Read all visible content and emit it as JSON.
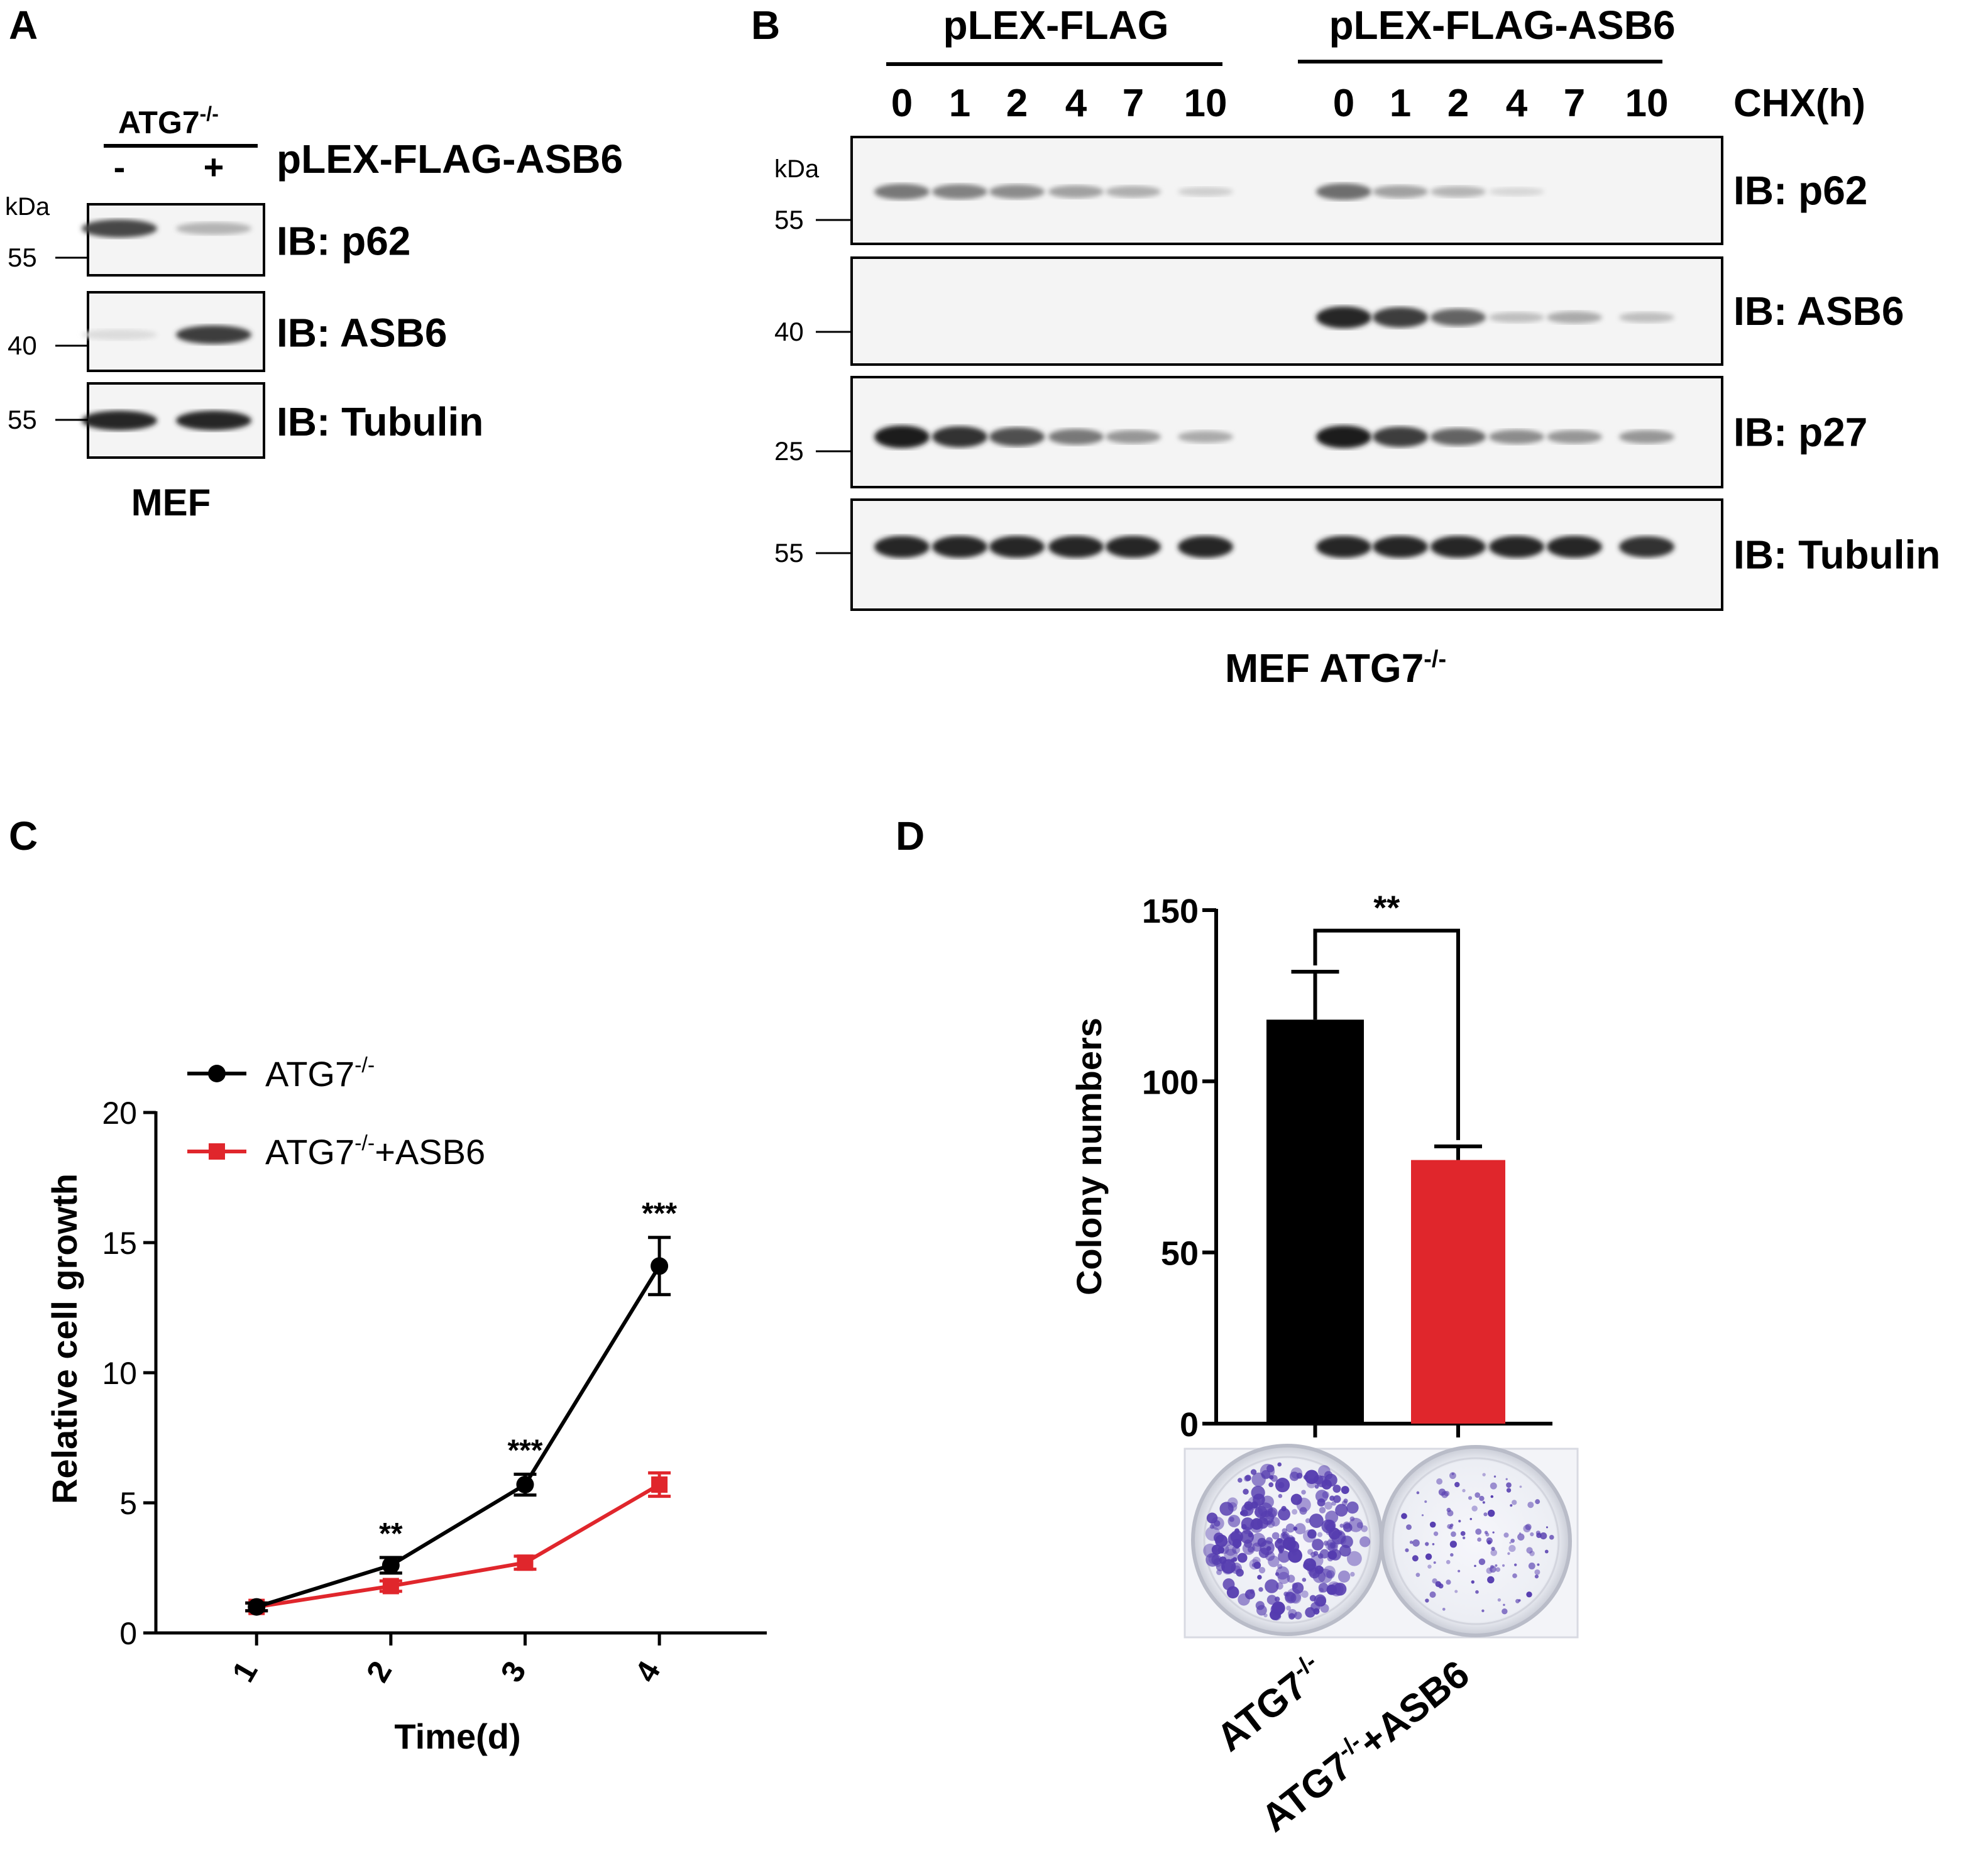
{
  "panel_a": {
    "letter": "A",
    "genotype": "ATG7",
    "genotype_sup": "-/-",
    "construct_label": "pLEX-FLAG-ASB6",
    "lanes": [
      "-",
      "+"
    ],
    "kda": "kDa",
    "blots": [
      {
        "label": "IB: p62",
        "marker": "55",
        "intensities": [
          0.8,
          0.25
        ]
      },
      {
        "label": "IB: ASB6",
        "marker": "40",
        "intensities": [
          0.05,
          0.85
        ]
      },
      {
        "label": "IB: Tubulin",
        "marker": "55",
        "intensities": [
          0.95,
          0.95
        ]
      }
    ],
    "cell_label": "MEF"
  },
  "panel_b": {
    "letter": "B",
    "groups": [
      "pLEX-FLAG",
      "pLEX-FLAG-ASB6"
    ],
    "timepoints": [
      "0",
      "1",
      "2",
      "4",
      "7",
      "10"
    ],
    "chx_label": "CHX(h)",
    "kda": "kDa",
    "blots": [
      {
        "label": "IB: p62",
        "marker": "55",
        "intensities": [
          0.55,
          0.5,
          0.45,
          0.35,
          0.28,
          0.12,
          0.6,
          0.35,
          0.25,
          0.08,
          0.0,
          0.0
        ]
      },
      {
        "label": "IB: ASB6",
        "marker": "40",
        "intensities": [
          0,
          0,
          0,
          0,
          0,
          0,
          0.95,
          0.85,
          0.65,
          0.2,
          0.3,
          0.2
        ]
      },
      {
        "label": "IB: p27",
        "marker": "25",
        "intensities": [
          1.0,
          0.9,
          0.75,
          0.55,
          0.4,
          0.3,
          1.0,
          0.85,
          0.65,
          0.45,
          0.4,
          0.4
        ]
      },
      {
        "label": "IB: Tubulin",
        "marker": "55",
        "intensities": [
          0.95,
          0.95,
          0.95,
          0.95,
          0.95,
          0.95,
          0.95,
          0.95,
          0.95,
          0.95,
          0.95,
          0.9
        ]
      }
    ],
    "cell_label": "MEF ATG7",
    "cell_label_sup": "-/-"
  },
  "panel_c": {
    "letter": "C",
    "legend_sup": "-/-",
    "chart_data": {
      "type": "line",
      "x": [
        1,
        2,
        3,
        4
      ],
      "tick_labels": [
        "1",
        "2",
        "3",
        "4"
      ],
      "series": [
        {
          "name": "ATG7-/-",
          "name_base": "ATG7",
          "name_sup": "-/-",
          "name_suffix": "",
          "color": "#000000",
          "marker": "circle",
          "values": [
            1.0,
            2.6,
            5.7,
            14.1
          ],
          "errors": [
            0.15,
            0.3,
            0.4,
            1.1
          ]
        },
        {
          "name": "ATG7-/-+ASB6",
          "name_base": "ATG7",
          "name_sup": "-/-",
          "name_suffix": "+ASB6",
          "color": "#e0262c",
          "marker": "square",
          "values": [
            1.0,
            1.8,
            2.7,
            5.7
          ],
          "errors": [
            0.15,
            0.2,
            0.25,
            0.45
          ]
        }
      ],
      "significance": [
        "",
        "**",
        "***",
        "***"
      ],
      "xlabel": "Time(d)",
      "ylabel": "Relative cell growth",
      "ylim": [
        0,
        20
      ],
      "yticks": [
        0,
        5,
        10,
        15,
        20
      ],
      "legend": "top-left"
    }
  },
  "panel_d": {
    "letter": "D",
    "chart_data": {
      "type": "bar",
      "categories": [
        "ATG7-/-",
        "ATG7-/-+ASB6"
      ],
      "category_base": [
        "ATG7",
        "ATG7"
      ],
      "category_sup": [
        "-/-",
        "-/-"
      ],
      "category_suffix": [
        "",
        "+ASB6"
      ],
      "values": [
        118,
        77
      ],
      "errors": [
        14,
        4
      ],
      "colors": [
        "#000000",
        "#e0262c"
      ],
      "ylabel": "Colony numbers",
      "ylim": [
        0,
        150
      ],
      "yticks": [
        0,
        50,
        100,
        150
      ],
      "significance": "**"
    },
    "dish_densities": [
      1.0,
      0.45
    ]
  }
}
